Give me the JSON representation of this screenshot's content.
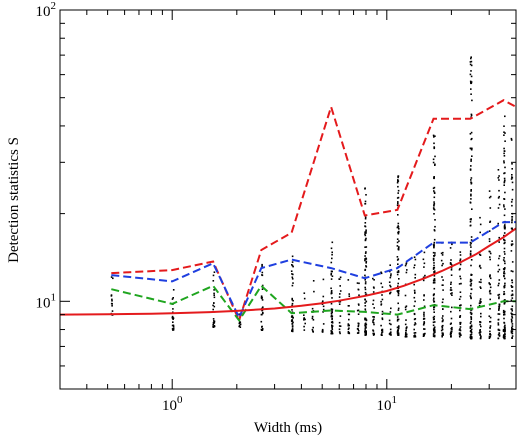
{
  "chart_data": {
    "type": "line",
    "xlabel": "Width (ms)",
    "ylabel": "Detection statistics S",
    "xscale": "log",
    "yscale": "log",
    "xlim": [
      0.3,
      40
    ],
    "ylim": [
      5,
      100
    ],
    "x_ticks": [
      {
        "value": 1,
        "base": "10",
        "exp": "0"
      },
      {
        "value": 10,
        "base": "10",
        "exp": "1"
      }
    ],
    "y_ticks": [
      {
        "value": 10,
        "base": "10",
        "exp": "1"
      },
      {
        "value": 100,
        "base": "10",
        "exp": "2"
      }
    ],
    "series": [
      {
        "color": "#e41a1c",
        "style": "dashed",
        "x": [
          0.52,
          1.0,
          1.55,
          2.05,
          2.6,
          3.6,
          5.5,
          7.9,
          11.2,
          16.5,
          24.5,
          35,
          40
        ],
        "y": [
          12.5,
          12.8,
          13.7,
          8.6,
          15.0,
          17.2,
          46.5,
          19.7,
          20.6,
          42.3,
          42.3,
          49.0,
          46.5
        ]
      },
      {
        "color": "#1f3fdf",
        "style": "dashed",
        "x": [
          0.52,
          1.0,
          1.55,
          2.05,
          2.6,
          3.6,
          5.5,
          7.9,
          11.2,
          16.5,
          24.5,
          35,
          40
        ],
        "y": [
          12.3,
          11.7,
          13.5,
          8.8,
          13.0,
          13.9,
          13.0,
          12.0,
          13.0,
          15.9,
          15.9,
          18.7,
          18.7
        ]
      },
      {
        "color": "#1fa51f",
        "style": "dashed",
        "x": [
          0.52,
          1.0,
          1.55,
          2.05,
          2.6,
          3.6,
          5.5,
          7.9,
          11.2,
          16.5,
          24.5,
          35,
          40
        ],
        "y": [
          11.0,
          9.8,
          11.3,
          8.6,
          11.3,
          9.1,
          9.3,
          9.2,
          9.0,
          9.7,
          9.4,
          10.0,
          10.0
        ]
      },
      {
        "color": "#e41a1c",
        "style": "solid",
        "x": [
          0.3,
          0.5,
          0.8,
          1.0,
          1.5,
          2.0,
          3.0,
          4.0,
          5.0,
          6.0,
          8.0,
          10.0,
          12.0,
          15.0,
          18.0,
          22.0,
          26.0,
          30.0,
          35.0,
          40.0
        ],
        "y": [
          9.0,
          9.03,
          9.07,
          9.1,
          9.18,
          9.27,
          9.45,
          9.65,
          9.85,
          10.05,
          10.45,
          10.85,
          11.3,
          12.0,
          12.7,
          13.6,
          14.5,
          15.5,
          16.6,
          17.8
        ]
      }
    ],
    "scatter": {
      "color": "#000000",
      "columns": [
        {
          "x": 0.52,
          "ymin": 9.0,
          "ymax": 12.5,
          "n": 14
        },
        {
          "x": 1.0,
          "ymin": 8.0,
          "ymax": 12.2,
          "n": 24
        },
        {
          "x": 1.55,
          "ymin": 8.2,
          "ymax": 13.5,
          "n": 26
        },
        {
          "x": 2.05,
          "ymin": 8.2,
          "ymax": 9.6,
          "n": 10
        },
        {
          "x": 2.6,
          "ymin": 8.0,
          "ymax": 13.8,
          "n": 30
        },
        {
          "x": 3.6,
          "ymin": 7.9,
          "ymax": 15.0,
          "n": 44
        },
        {
          "x": 4.1,
          "ymin": 8.0,
          "ymax": 11.5,
          "n": 10
        },
        {
          "x": 4.5,
          "ymin": 7.9,
          "ymax": 12.2,
          "n": 12
        },
        {
          "x": 5.0,
          "ymin": 7.9,
          "ymax": 13.8,
          "n": 16
        },
        {
          "x": 5.5,
          "ymin": 7.8,
          "ymax": 16.8,
          "n": 52
        },
        {
          "x": 6.0,
          "ymin": 7.8,
          "ymax": 12.5,
          "n": 18
        },
        {
          "x": 6.6,
          "ymin": 7.8,
          "ymax": 12.0,
          "n": 18
        },
        {
          "x": 7.3,
          "ymin": 7.8,
          "ymax": 11.8,
          "n": 20
        },
        {
          "x": 7.9,
          "ymin": 7.7,
          "ymax": 26.0,
          "n": 90
        },
        {
          "x": 8.6,
          "ymin": 7.7,
          "ymax": 12.4,
          "n": 22
        },
        {
          "x": 9.4,
          "ymin": 7.7,
          "ymax": 12.8,
          "n": 24
        },
        {
          "x": 10.3,
          "ymin": 7.7,
          "ymax": 13.5,
          "n": 26
        },
        {
          "x": 11.2,
          "ymin": 7.7,
          "ymax": 28.0,
          "n": 90
        },
        {
          "x": 12.2,
          "ymin": 7.6,
          "ymax": 13.8,
          "n": 28
        },
        {
          "x": 13.4,
          "ymin": 7.6,
          "ymax": 14.5,
          "n": 30
        },
        {
          "x": 14.8,
          "ymin": 7.6,
          "ymax": 15.2,
          "n": 32
        },
        {
          "x": 16.5,
          "ymin": 7.6,
          "ymax": 38.0,
          "n": 110
        },
        {
          "x": 18.0,
          "ymin": 7.6,
          "ymax": 16.0,
          "n": 34
        },
        {
          "x": 19.8,
          "ymin": 7.6,
          "ymax": 17.0,
          "n": 36
        },
        {
          "x": 21.8,
          "ymin": 7.6,
          "ymax": 18.0,
          "n": 38
        },
        {
          "x": 24.5,
          "ymin": 7.5,
          "ymax": 70.0,
          "n": 130
        },
        {
          "x": 27.0,
          "ymin": 7.5,
          "ymax": 20.0,
          "n": 40
        },
        {
          "x": 30.0,
          "ymin": 7.5,
          "ymax": 26.0,
          "n": 44
        },
        {
          "x": 33.0,
          "ymin": 7.5,
          "ymax": 30.0,
          "n": 48
        },
        {
          "x": 35.0,
          "ymin": 7.5,
          "ymax": 45.0,
          "n": 120
        },
        {
          "x": 38.0,
          "ymin": 7.5,
          "ymax": 40.0,
          "n": 70
        }
      ]
    },
    "grid": false
  }
}
